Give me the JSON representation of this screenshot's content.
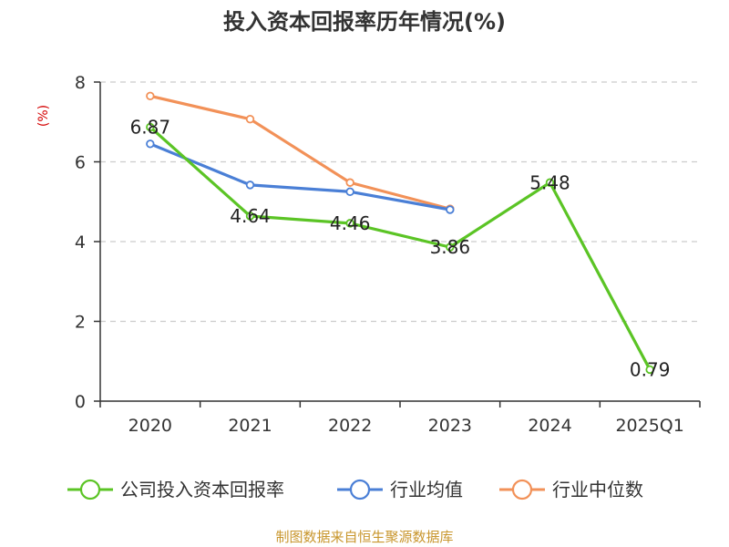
{
  "chart_data": {
    "type": "line",
    "title": "投入资本回报率历年情况(%)",
    "ylabel": "(%)",
    "xlabel": "",
    "categories": [
      "2020",
      "2021",
      "2022",
      "2023",
      "2024",
      "2025Q1"
    ],
    "ylim": [
      0,
      8
    ],
    "yticks": [
      0,
      2,
      4,
      6,
      8
    ],
    "grid": true,
    "legend_position": "bottom",
    "series": [
      {
        "name": "公司投入资本回报率",
        "color": "#5bc425",
        "values": [
          6.87,
          4.64,
          4.46,
          3.86,
          5.48,
          0.79
        ],
        "labels": [
          "6.87",
          "4.64",
          "4.46",
          "3.86",
          "5.48",
          "0.79"
        ]
      },
      {
        "name": "行业均值",
        "color": "#4a7fd6",
        "values": [
          6.45,
          5.42,
          5.25,
          4.8,
          null,
          null
        ]
      },
      {
        "name": "行业中位数",
        "color": "#f29158",
        "values": [
          7.65,
          7.07,
          5.48,
          4.82,
          null,
          null
        ]
      }
    ]
  },
  "source": "制图数据来自恒生聚源数据库"
}
